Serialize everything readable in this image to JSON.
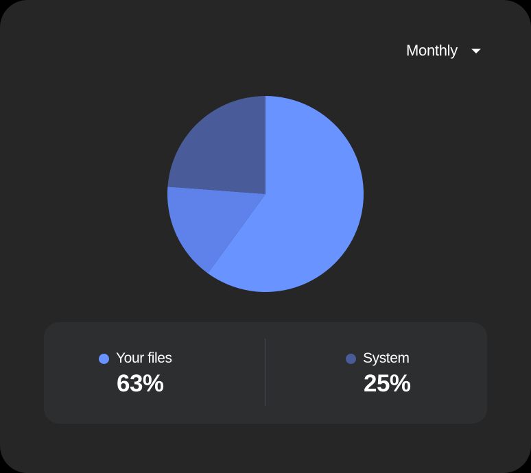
{
  "period_select": {
    "label": "Monthly",
    "icon": "chevron-down-icon"
  },
  "colors": {
    "background": "#262627",
    "panel": "#2d2e30",
    "your_files": "#6993ff",
    "other": "#5e82e9",
    "system": "#495c99"
  },
  "chart_data": {
    "type": "pie",
    "title": "",
    "slices": [
      {
        "name": "Your files",
        "value": 63,
        "color": "#6993ff"
      },
      {
        "name": "",
        "value": 17,
        "color": "#5e82e9"
      },
      {
        "name": "System",
        "value": 25,
        "color": "#495c99"
      }
    ]
  },
  "legend": {
    "items": [
      {
        "label": "Your files",
        "value": "63%",
        "color": "#6993ff"
      },
      {
        "label": "System",
        "value": "25%",
        "color": "#495c99"
      }
    ]
  }
}
